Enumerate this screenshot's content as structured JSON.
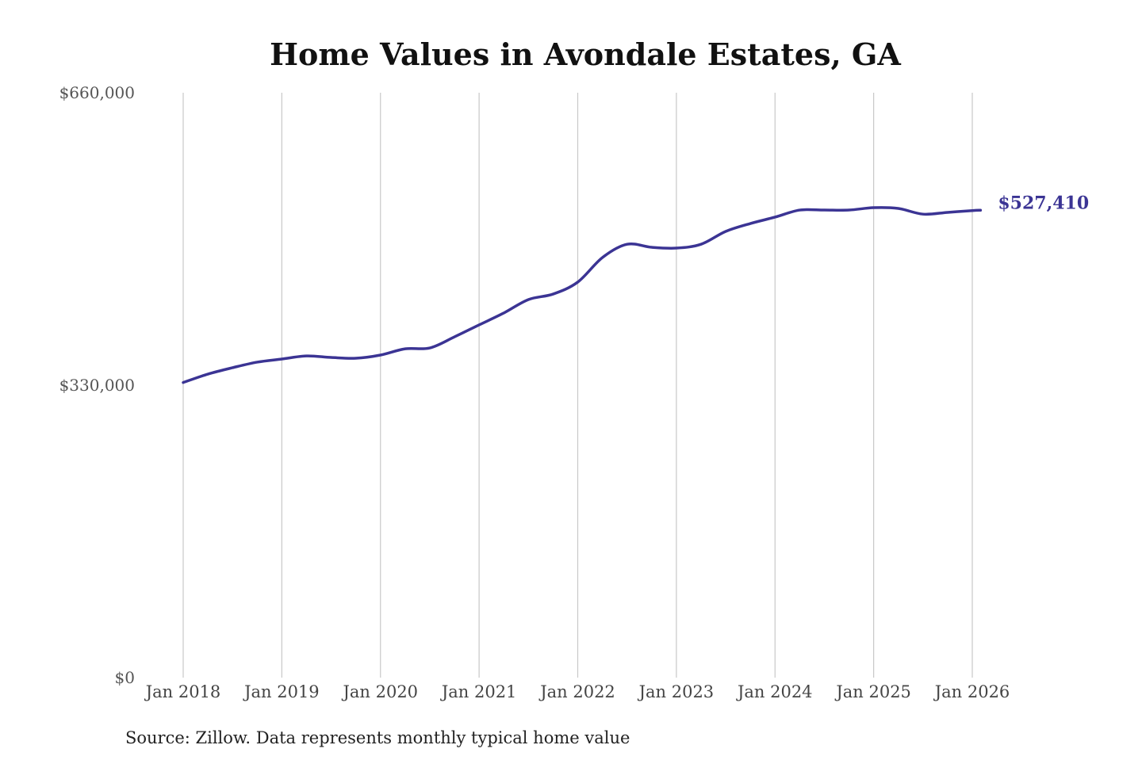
{
  "chart_data": {
    "type": "line",
    "title": "Home Values in Avondale Estates, GA",
    "source": "Source: Zillow. Data represents monthly typical home value",
    "xlabel": "",
    "ylabel": "",
    "ylim": [
      0,
      660000
    ],
    "xlim": [
      "2018-01",
      "2026-02"
    ],
    "y_ticks": [
      0,
      330000,
      660000
    ],
    "y_tick_labels": [
      "$0",
      "$330,000",
      "$660,000"
    ],
    "x_ticks": [
      "2018-01",
      "2019-01",
      "2020-01",
      "2021-01",
      "2022-01",
      "2023-01",
      "2024-01",
      "2025-01",
      "2026-01"
    ],
    "x_tick_labels": [
      "Jan 2018",
      "Jan 2019",
      "Jan 2020",
      "Jan 2021",
      "Jan 2022",
      "Jan 2023",
      "Jan 2024",
      "Jan 2025",
      "Jan 2026"
    ],
    "grid": "vertical",
    "line_color": "#3b3494",
    "end_label": "$527,410",
    "series": [
      {
        "x": [
          "2018-01",
          "2018-04",
          "2018-07",
          "2018-10",
          "2019-01",
          "2019-04",
          "2019-07",
          "2019-10",
          "2020-01",
          "2020-04",
          "2020-07",
          "2020-10",
          "2021-01",
          "2021-04",
          "2021-07",
          "2021-10",
          "2022-01",
          "2022-04",
          "2022-07",
          "2022-10",
          "2023-01",
          "2023-04",
          "2023-07",
          "2023-10",
          "2024-01",
          "2024-04",
          "2024-07",
          "2024-10",
          "2025-01",
          "2025-04",
          "2025-07",
          "2025-10",
          "2026-01",
          "2026-02"
        ],
        "values": [
          333000,
          342500,
          349700,
          356000,
          359500,
          363000,
          361300,
          360400,
          364000,
          371000,
          372000,
          384500,
          398000,
          411400,
          426600,
          432800,
          446300,
          474000,
          489000,
          485600,
          484700,
          489000,
          503500,
          512400,
          519600,
          527600,
          527600,
          527600,
          530300,
          529400,
          523000,
          525000,
          527000,
          527410
        ]
      }
    ]
  }
}
